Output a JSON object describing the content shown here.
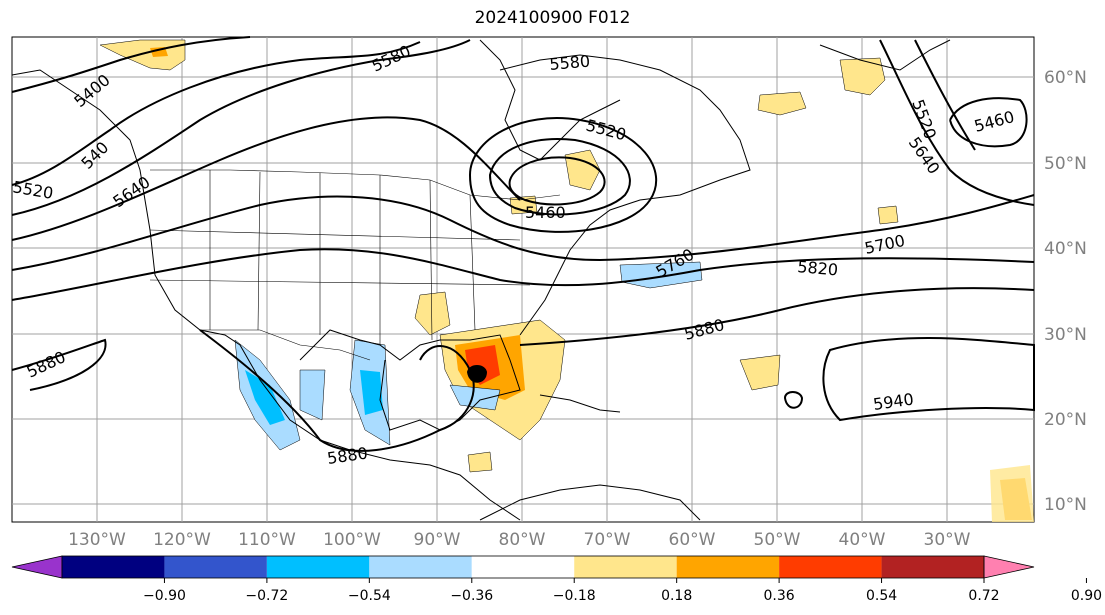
{
  "title": "2024100900 F012",
  "lon_labels": [
    "130°W",
    "120°W",
    "110°W",
    "100°W",
    "90°W",
    "80°W",
    "70°W",
    "60°W",
    "50°W",
    "40°W",
    "30°W"
  ],
  "lat_labels": [
    "60°N",
    "50°N",
    "40°N",
    "30°N",
    "20°N",
    "10°N"
  ],
  "contour_labels": [
    "5580",
    "5580",
    "5400",
    "540",
    "5520",
    "5640",
    "5520",
    "5460",
    "5460",
    "5520",
    "5640",
    "5700",
    "5820",
    "5760",
    "5880",
    "5880",
    "5880",
    "5940"
  ],
  "colorbar": {
    "colors": [
      "#9933cc",
      "#000080",
      "#3355cc",
      "#00bfff",
      "#aadcff",
      "#ffffff",
      "#ffe68c",
      "#ffa500",
      "#ff3c00",
      "#b22222",
      "#ff80b0"
    ],
    "ticks": [
      "−0.90",
      "−0.72",
      "−0.54",
      "−0.36",
      "−0.18",
      "0.18",
      "0.36",
      "0.54",
      "0.72",
      "0.90"
    ]
  },
  "colors": {
    "contour": "#000000",
    "grid": "#a0a0a0",
    "coast": "#000000"
  }
}
